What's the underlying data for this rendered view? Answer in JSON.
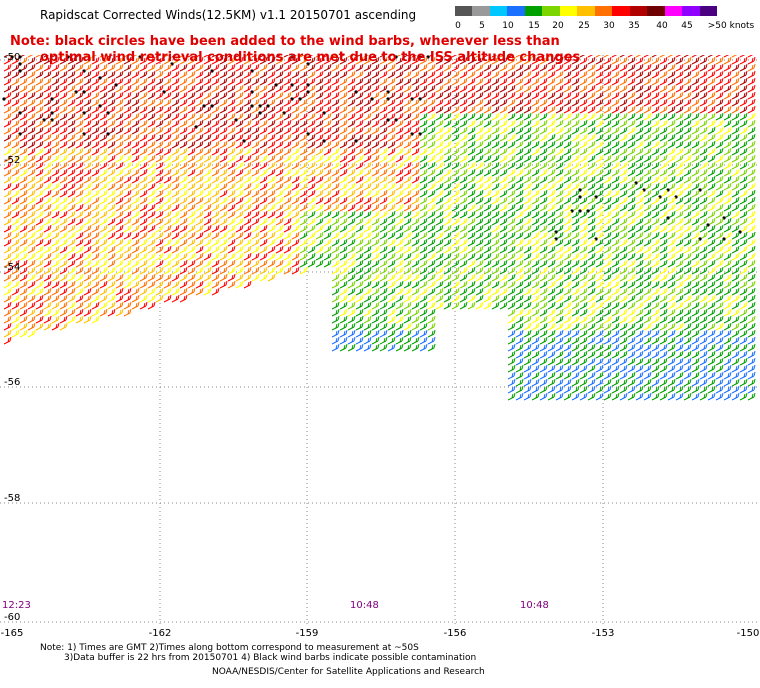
{
  "title": "Rapidscat Corrected Winds(12.5KM) v1.1 20150701 ascending",
  "note_line1": "Note: black circles have been added to the wind barbs, wherever less than",
  "note_line2": "optimal wind retrieval conditions are met due to the ISS altitude changes",
  "legend": {
    "labels": [
      "0",
      "5",
      "10",
      "15",
      "20",
      "25",
      "30",
      "35",
      "40",
      "45",
      ">50 knots"
    ],
    "colors": [
      "#555555",
      "#999999",
      "#00c8ff",
      "#1a70ff",
      "#00a000",
      "#7cd400",
      "#ffff00",
      "#ffc000",
      "#ff7000",
      "#ff0000",
      "#b00000",
      "#700000",
      "#ff00ff",
      "#9000ff",
      "#4b0082"
    ]
  },
  "latitudes": [
    "-50",
    "-52",
    "-54",
    "-56",
    "-58",
    "-60"
  ],
  "longitudes": [
    "-165",
    "-162",
    "-159",
    "-156",
    "-153",
    "-150"
  ],
  "times": [
    "12:23",
    "10:48",
    "10:48"
  ],
  "footer": {
    "line1": "Note: 1) Times are GMT 2)Times along bottom correspond to measurement at ~50S",
    "line2": "3)Data buffer is 22 hrs from 20150701 4) Black wind barbs indicate possible contamination",
    "credit": "NOAA/NESDIS/Center for Satellite Applications and Research"
  }
}
